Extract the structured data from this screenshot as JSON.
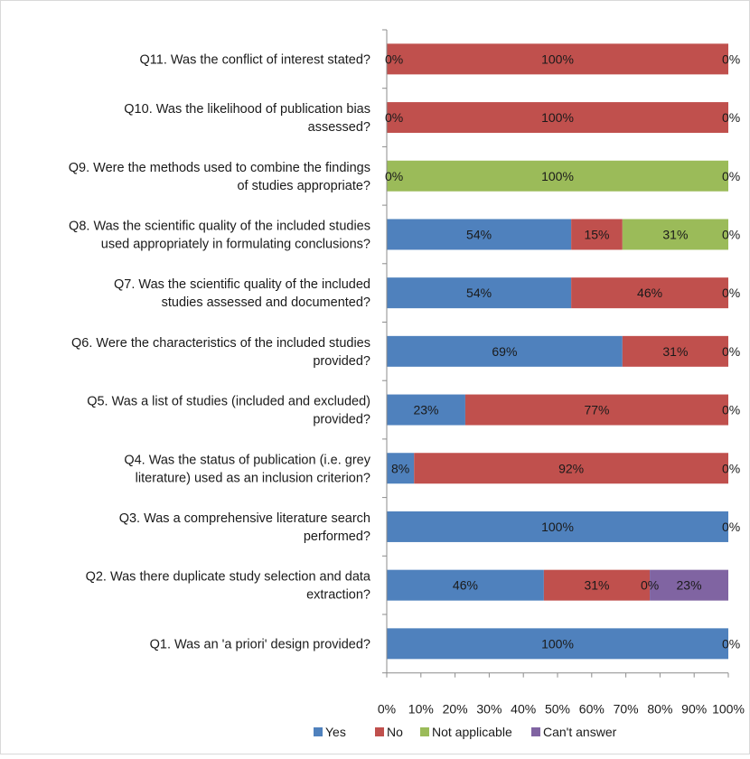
{
  "chart_data": {
    "type": "bar",
    "stacked": "percent",
    "orientation": "horizontal",
    "categories": [
      [
        "Q11. Was the conflict of interest stated?"
      ],
      [
        "Q10. Was the likelihood of publication bias",
        "assessed?"
      ],
      [
        "Q9. Were the methods used to combine the findings",
        "of studies appropriate?"
      ],
      [
        "Q8. Was the scientific quality of the included studies",
        "used appropriately in formulating conclusions?"
      ],
      [
        "Q7. Was the scientific quality of the included",
        "studies assessed and documented?"
      ],
      [
        "Q6. Were the characteristics of the included studies",
        "provided?"
      ],
      [
        "Q5. Was a list of studies (included and excluded)",
        "provided?"
      ],
      [
        "Q4. Was the status of publication (i.e. grey",
        "literature) used as an inclusion criterion?"
      ],
      [
        "Q3. Was a comprehensive literature search",
        "performed?"
      ],
      [
        "Q2. Was there duplicate study selection and data",
        "extraction?"
      ],
      [
        "Q1. Was an 'a priori' design provided?"
      ]
    ],
    "series": [
      {
        "name": "Yes",
        "color": "#4f81bd",
        "values": [
          0,
          0,
          0,
          54,
          54,
          69,
          23,
          8,
          100,
          46,
          100
        ]
      },
      {
        "name": "No",
        "color": "#c0504d",
        "values": [
          100,
          100,
          0,
          15,
          46,
          31,
          77,
          92,
          0,
          31,
          0
        ]
      },
      {
        "name": "Not applicable",
        "color": "#9bbb59",
        "values": [
          0,
          0,
          100,
          31,
          0,
          0,
          0,
          0,
          0,
          0,
          0
        ]
      },
      {
        "name": "Can't answer",
        "color": "#8064a2",
        "values": [
          0,
          0,
          0,
          0,
          0,
          0,
          0,
          0,
          0,
          23,
          0
        ]
      }
    ],
    "labels": [
      [
        {
          "s": 1,
          "text": "0%",
          "at": 0
        },
        {
          "s": 1,
          "text": "100%",
          "at": 50
        },
        {
          "s": 1,
          "text": "0%",
          "at": 100
        }
      ],
      [
        {
          "s": 1,
          "text": "0%",
          "at": 0
        },
        {
          "s": 1,
          "text": "100%",
          "at": 50
        },
        {
          "s": 1,
          "text": "0%",
          "at": 100
        }
      ],
      [
        {
          "s": 2,
          "text": "0%",
          "at": 0
        },
        {
          "s": 2,
          "text": "100%",
          "at": 50
        },
        {
          "s": 2,
          "text": "0%",
          "at": 100
        }
      ],
      [
        {
          "s": 0,
          "text": "54%",
          "at": 27
        },
        {
          "s": 1,
          "text": "15%",
          "at": 61.5
        },
        {
          "s": 2,
          "text": "31%",
          "at": 84.5
        },
        {
          "s": 2,
          "text": "0%",
          "at": 100
        }
      ],
      [
        {
          "s": 0,
          "text": "54%",
          "at": 27
        },
        {
          "s": 1,
          "text": "46%",
          "at": 77
        },
        {
          "s": 1,
          "text": "0%",
          "at": 100
        }
      ],
      [
        {
          "s": 0,
          "text": "69%",
          "at": 34.5
        },
        {
          "s": 1,
          "text": "31%",
          "at": 84.5
        },
        {
          "s": 1,
          "text": "0%",
          "at": 100
        }
      ],
      [
        {
          "s": 0,
          "text": "23%",
          "at": 11.5
        },
        {
          "s": 1,
          "text": "77%",
          "at": 61.5
        },
        {
          "s": 1,
          "text": "0%",
          "at": 100
        }
      ],
      [
        {
          "s": 0,
          "text": "8%",
          "at": 4
        },
        {
          "s": 1,
          "text": "92%",
          "at": 54
        },
        {
          "s": 1,
          "text": "0%",
          "at": 100
        }
      ],
      [
        {
          "s": 0,
          "text": "100%",
          "at": 50
        },
        {
          "s": 0,
          "text": "0%",
          "at": 100
        }
      ],
      [
        {
          "s": 0,
          "text": "46%",
          "at": 23
        },
        {
          "s": 1,
          "text": "31%",
          "at": 61.5
        },
        {
          "s": 2,
          "text": "0%",
          "at": 77
        },
        {
          "s": 3,
          "text": "23%",
          "at": 88.5
        }
      ],
      [
        {
          "s": 0,
          "text": "100%",
          "at": 50
        },
        {
          "s": 0,
          "text": "0%",
          "at": 100
        }
      ]
    ],
    "xlim": [
      0,
      100
    ],
    "xticks": [
      "0%",
      "10%",
      "20%",
      "30%",
      "40%",
      "50%",
      "60%",
      "70%",
      "80%",
      "90%",
      "100%"
    ],
    "grid": false,
    "legend_position": "bottom"
  }
}
